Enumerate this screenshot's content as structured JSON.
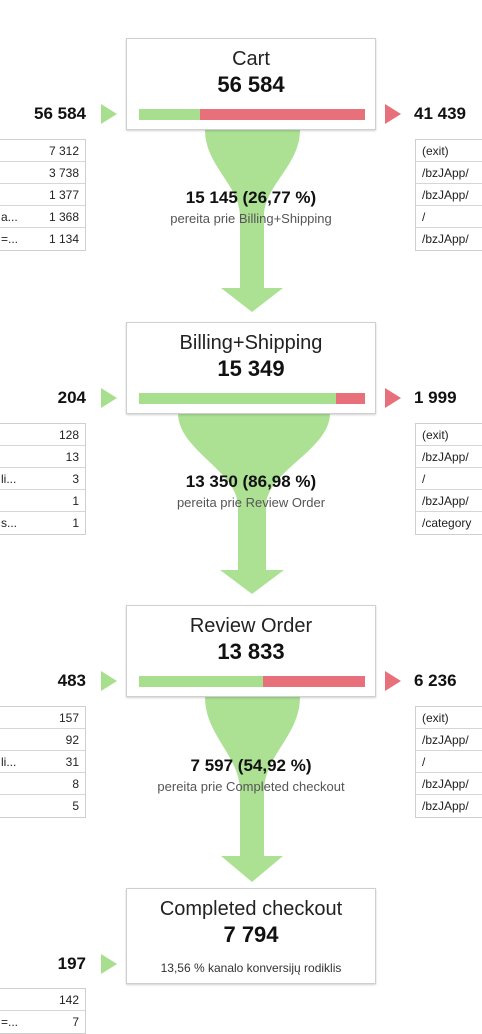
{
  "colors": {
    "green": "#a8df8e",
    "red": "#e8707a",
    "arrow": "#a8df8e"
  },
  "stages": [
    {
      "name": "Cart",
      "count": "56 584",
      "entered": "56 584",
      "exited": "41 439",
      "proceed_fraction": 0.268,
      "left_rows": [
        {
          "label": "",
          "value": "7 312"
        },
        {
          "label": "",
          "value": "3 738"
        },
        {
          "label": "",
          "value": "1 377"
        },
        {
          "label": "a...",
          "value": "1 368"
        },
        {
          "label": "=...",
          "value": "1 134"
        }
      ],
      "right_rows": [
        "(exit)",
        "/bzJApp/",
        "/bzJApp/",
        "/",
        "/bzJApp/"
      ],
      "conversion": "15 145 (26,77 %)",
      "conversion_label": "pereita prie Billing+Shipping"
    },
    {
      "name": "Billing+Shipping",
      "count": "15 349",
      "entered": "204",
      "exited": "1 999",
      "proceed_fraction": 0.87,
      "left_rows": [
        {
          "label": "",
          "value": "128"
        },
        {
          "label": "",
          "value": "13"
        },
        {
          "label": "li...",
          "value": "3"
        },
        {
          "label": "",
          "value": "1"
        },
        {
          "label": "s...",
          "value": "1"
        }
      ],
      "right_rows": [
        "(exit)",
        "/bzJApp/",
        "/",
        "/bzJApp/",
        "/category"
      ],
      "conversion": "13 350 (86,98 %)",
      "conversion_label": "pereita prie Review Order"
    },
    {
      "name": "Review Order",
      "count": "13 833",
      "entered": "483",
      "exited": "6 236",
      "proceed_fraction": 0.549,
      "left_rows": [
        {
          "label": "",
          "value": "157"
        },
        {
          "label": "",
          "value": "92"
        },
        {
          "label": "li...",
          "value": "31"
        },
        {
          "label": "",
          "value": "8"
        },
        {
          "label": "",
          "value": "5"
        }
      ],
      "right_rows": [
        "(exit)",
        "/bzJApp/",
        "/",
        "/bzJApp/",
        "/bzJApp/"
      ],
      "conversion": "7 597 (54,92 %)",
      "conversion_label": "pereita prie Completed checkout"
    },
    {
      "name": "Completed checkout",
      "count": "7 794",
      "entered": "197",
      "note": "13,56 % kanalo konversijų rodiklis",
      "left_rows": [
        {
          "label": "",
          "value": "142"
        },
        {
          "label": "=...",
          "value": "7"
        }
      ]
    }
  ]
}
